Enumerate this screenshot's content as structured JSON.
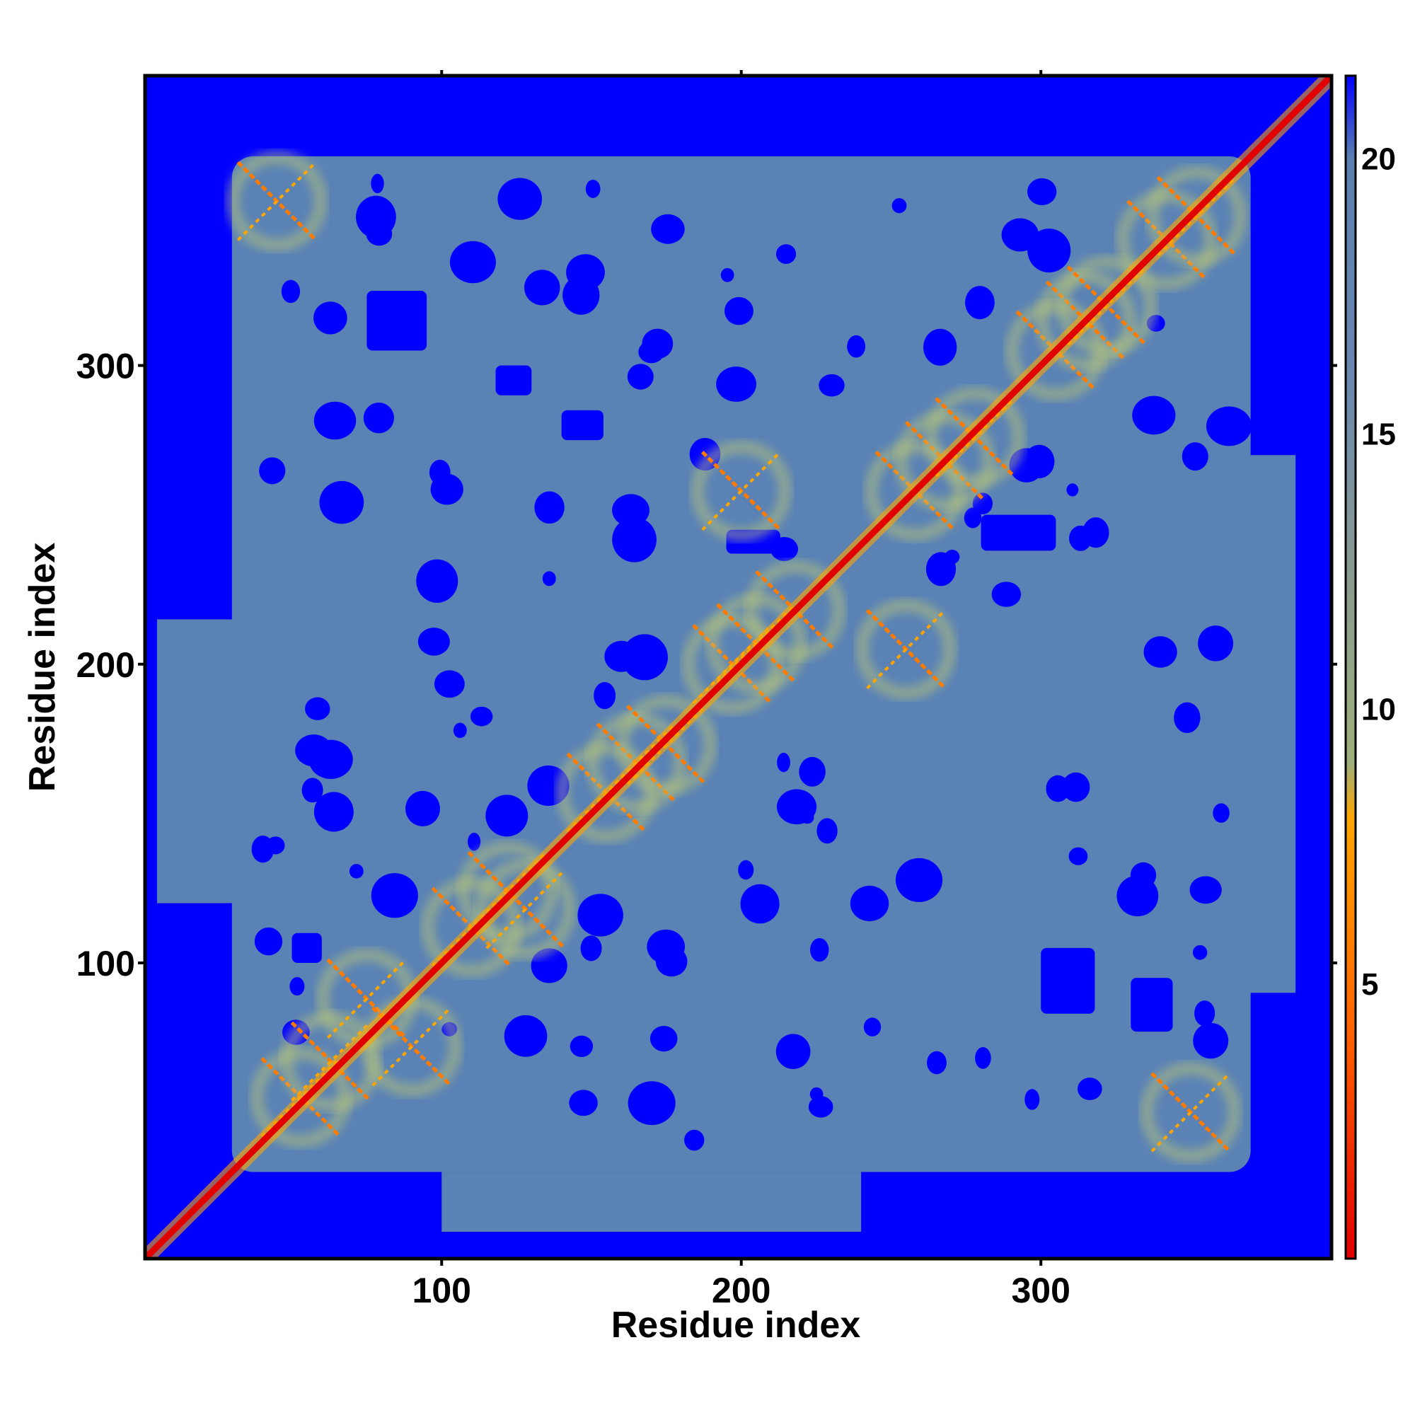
{
  "chart_data": {
    "type": "heatmap",
    "title": "",
    "xlabel": "Residue index",
    "ylabel": "Residue index",
    "xlim": [
      1,
      397
    ],
    "ylim": [
      1,
      397
    ],
    "x_ticks": [
      100,
      200,
      300
    ],
    "y_ticks": [
      100,
      200,
      300
    ],
    "grid": false,
    "colorbar": {
      "position": "right",
      "range": [
        0,
        21.5
      ],
      "ticks": [
        5,
        10,
        15,
        20
      ],
      "stops": [
        {
          "value": 0,
          "color": "#e00000"
        },
        {
          "value": 4,
          "color": "#ff6000"
        },
        {
          "value": 8,
          "color": "#ffa500"
        },
        {
          "value": 9,
          "color": "#9fb07a"
        },
        {
          "value": 12,
          "color": "#8c9e8c"
        },
        {
          "value": 16,
          "color": "#6a88b0"
        },
        {
          "value": 20,
          "color": "#5a7fb0"
        },
        {
          "value": 21.5,
          "color": "#0000ff"
        }
      ]
    },
    "background_value_color": "#0000ff",
    "diagonal_color": "#e00000",
    "cross_motifs": [
      {
        "x": 53,
        "y": 55
      },
      {
        "x": 63,
        "y": 67
      },
      {
        "x": 75,
        "y": 88
      },
      {
        "x": 90,
        "y": 72
      },
      {
        "x": 110,
        "y": 112
      },
      {
        "x": 122,
        "y": 124
      },
      {
        "x": 128,
        "y": 118
      },
      {
        "x": 155,
        "y": 157
      },
      {
        "x": 165,
        "y": 167
      },
      {
        "x": 175,
        "y": 173
      },
      {
        "x": 197,
        "y": 200
      },
      {
        "x": 205,
        "y": 207
      },
      {
        "x": 218,
        "y": 218
      },
      {
        "x": 258,
        "y": 258
      },
      {
        "x": 268,
        "y": 268
      },
      {
        "x": 278,
        "y": 276
      },
      {
        "x": 305,
        "y": 305
      },
      {
        "x": 315,
        "y": 315
      },
      {
        "x": 322,
        "y": 320
      },
      {
        "x": 342,
        "y": 342
      },
      {
        "x": 352,
        "y": 350
      },
      {
        "x": 45,
        "y": 355
      },
      {
        "x": 350,
        "y": 50
      },
      {
        "x": 200,
        "y": 258
      },
      {
        "x": 255,
        "y": 205
      }
    ]
  }
}
